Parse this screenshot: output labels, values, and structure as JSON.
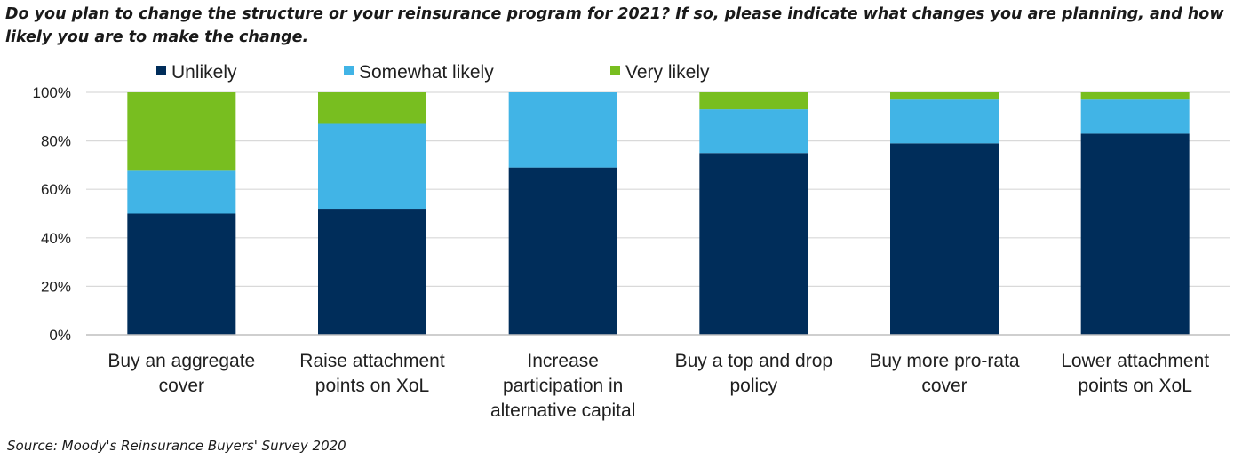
{
  "title": "Do you plan to change the structure or your reinsurance program for 2021? If so, please indicate what changes you are planning, and how likely you are to make the change.",
  "source": "Source: Moody's Reinsurance Buyers' Survey 2020",
  "chart_data": {
    "type": "bar",
    "stacked": true,
    "categories": [
      [
        "Buy an aggregate",
        "cover"
      ],
      [
        "Raise attachment",
        "points on XoL"
      ],
      [
        "Increase",
        "participation in",
        "alternative capital"
      ],
      [
        "Buy a top and drop",
        "policy"
      ],
      [
        "Buy more pro-rata",
        "cover"
      ],
      [
        "Lower attachment",
        "points on XoL"
      ]
    ],
    "series": [
      {
        "name": "Unlikely",
        "color": "#002d5a",
        "values": [
          50,
          52,
          69,
          75,
          79,
          83
        ]
      },
      {
        "name": "Somewhat likely",
        "color": "#41b4e6",
        "values": [
          18,
          35,
          31,
          18,
          18,
          14
        ]
      },
      {
        "name": "Very likely",
        "color": "#78be20",
        "values": [
          32,
          13,
          0,
          7,
          3,
          3
        ]
      }
    ],
    "ylim": [
      0,
      100
    ],
    "yticks": [
      "0%",
      "20%",
      "40%",
      "60%",
      "80%",
      "100%"
    ],
    "grid": true,
    "legend": "top"
  }
}
